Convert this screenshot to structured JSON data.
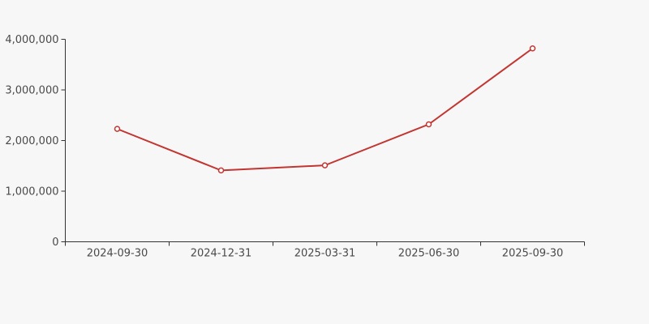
{
  "page": {
    "background_color": "#f7f7f7"
  },
  "chart_data": {
    "type": "line",
    "title": "",
    "categories": [
      "2024-09-30",
      "2024-12-31",
      "2025-03-31",
      "2025-06-30",
      "2025-09-30"
    ],
    "series": [
      {
        "name": "series-1",
        "values": [
          2230000,
          1410000,
          1510000,
          2320000,
          3820000
        ],
        "color": "#c23531",
        "marker": "open-circle",
        "marker_fill": "#ffffff"
      }
    ],
    "xlabel": "",
    "ylabel": "",
    "ylim": [
      0,
      4000000
    ],
    "ytick_interval": 1000000,
    "ytick_labels": [
      "0",
      "1,000,000",
      "2,000,000",
      "3,000,000",
      "4,000,000"
    ],
    "grid": false,
    "legend_visible": false,
    "axis_color": "#333333",
    "tick_label_color": "#4a4a4a",
    "tick_label_font_px": 13
  }
}
